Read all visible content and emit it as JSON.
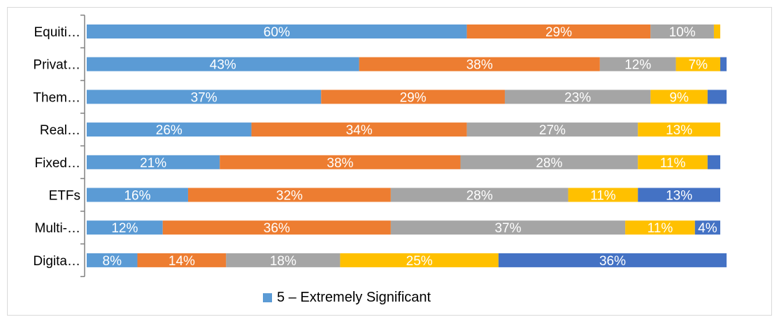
{
  "chart_data": {
    "type": "bar",
    "orientation": "horizontal",
    "stacked": true,
    "percent_stacked": true,
    "categories": [
      "Equiti…",
      "Privat…",
      "Them…",
      "Real…",
      "Fixed…",
      "ETFs",
      "Multi-…",
      "Digita…"
    ],
    "series": [
      {
        "name": "5 – Extremely Significant",
        "color": "#5b9bd5",
        "values": [
          60,
          43,
          37,
          26,
          21,
          16,
          12,
          8
        ],
        "labels": [
          "60%",
          "43%",
          "37%",
          "26%",
          "21%",
          "16%",
          "12%",
          "8%"
        ]
      },
      {
        "name": "",
        "color": "#ed7d31",
        "values": [
          29,
          38,
          29,
          34,
          38,
          32,
          36,
          14
        ],
        "labels": [
          "29%",
          "38%",
          "29%",
          "34%",
          "38%",
          "32%",
          "36%",
          "14%"
        ]
      },
      {
        "name": "",
        "color": "#a5a5a5",
        "values": [
          10,
          12,
          23,
          27,
          28,
          28,
          37,
          18
        ],
        "labels": [
          "10%",
          "12%",
          "23%",
          "27%",
          "28%",
          "28%",
          "37%",
          "18%"
        ]
      },
      {
        "name": "",
        "color": "#ffc000",
        "values": [
          1,
          7,
          9,
          13,
          11,
          11,
          11,
          25
        ],
        "labels": [
          "",
          "7%",
          "9%",
          "13%",
          "11%",
          "11%",
          "11%",
          "25%"
        ]
      },
      {
        "name": "",
        "color": "#4472c4",
        "values": [
          0,
          1,
          3,
          0,
          2,
          13,
          4,
          36
        ],
        "labels": [
          "",
          "",
          "",
          "",
          "",
          "13%",
          "4%",
          "36%"
        ]
      }
    ],
    "xlim": [
      0,
      100
    ],
    "grid": false,
    "legend_position": "bottom",
    "title": "",
    "xlabel": "",
    "ylabel": ""
  },
  "legend": {
    "entries": [
      {
        "label": "5 – Extremely Significant",
        "color": "#5b9bd5"
      }
    ]
  }
}
